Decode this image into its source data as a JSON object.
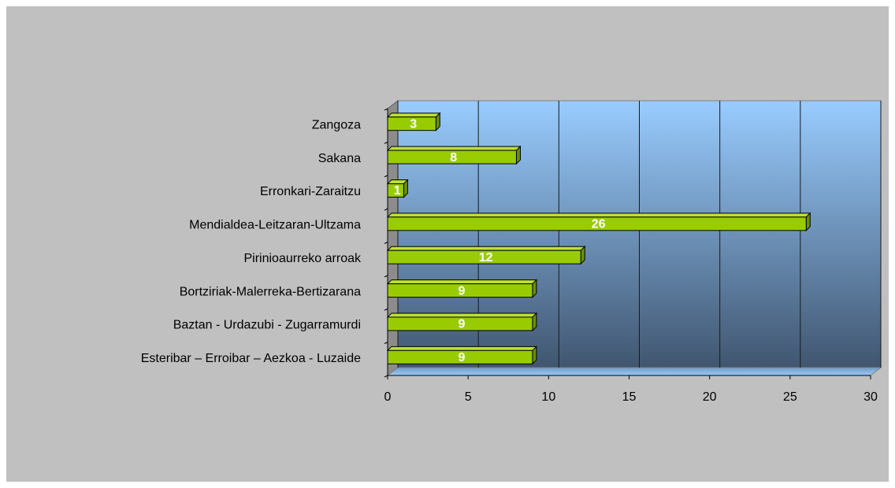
{
  "chart_data": {
    "type": "bar",
    "orientation": "horizontal",
    "categories": [
      "Zangoza",
      "Sakana",
      "Erronkari-Zaraitzu",
      "Mendialdea-Leitzaran-Ultzama",
      "Pirinioaurreko arroak",
      "Bortziriak-Malerreka-Bertizarana",
      "Baztan - Urdazubi - Zugarramurdi",
      "Esteribar – Erroibar – Aezkoa - Luzaide"
    ],
    "values": [
      3,
      8,
      1,
      26,
      12,
      9,
      9,
      9
    ],
    "color": "#99cc00",
    "xlim": [
      0,
      30
    ],
    "xticks": [
      0,
      5,
      10,
      15,
      20,
      25,
      30
    ],
    "grid": true
  }
}
